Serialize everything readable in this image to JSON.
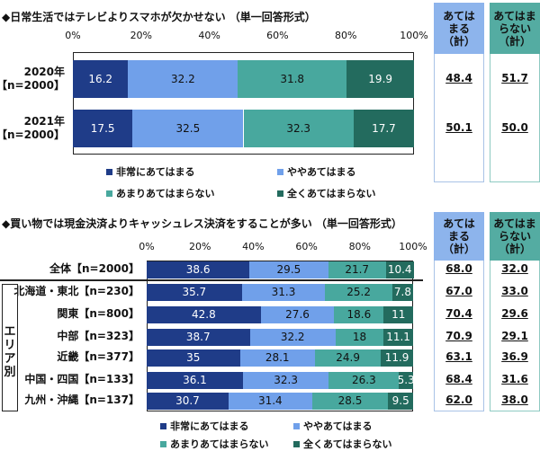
{
  "colors": {
    "very": "#1f3c88",
    "some": "#70a0ea",
    "notmuch": "#48a89e",
    "notatall": "#236b5e",
    "hdr1": "#8db4ec",
    "hdr2": "#54aca2"
  },
  "chart_data": [
    {
      "type": "bar",
      "orientation": "horizontal",
      "stacked": true,
      "title": "◆日常生活ではテレビよりスマホが欠かせない （単一回答形式）",
      "ticks": [
        "0%",
        "20%",
        "40%",
        "60%",
        "80%",
        "100%"
      ],
      "xlim": [
        0,
        100
      ],
      "categories": [
        "2020年\n【n=2000】",
        "2021年\n【n=2000】"
      ],
      "series": [
        {
          "name": "非常にあてはまる",
          "values": [
            16.2,
            17.5
          ]
        },
        {
          "name": "ややあてはまる",
          "values": [
            32.2,
            32.5
          ]
        },
        {
          "name": "あまりあてはまらない",
          "values": [
            31.8,
            32.3
          ]
        },
        {
          "name": "全くあてはまらない",
          "values": [
            19.9,
            17.7
          ]
        }
      ],
      "summary_headers": [
        "あては\nまる\n（計）",
        "あてはま\nらない\n（計）"
      ],
      "summary": [
        [
          "48.4",
          "51.7"
        ],
        [
          "50.1",
          "50.0"
        ]
      ]
    },
    {
      "type": "bar",
      "orientation": "horizontal",
      "stacked": true,
      "title": "◆買い物では現金決済よりキャッシュレス決済をすることが多い （単一回答形式）",
      "ticks": [
        "0%",
        "20%",
        "40%",
        "60%",
        "80%",
        "100%"
      ],
      "xlim": [
        0,
        100
      ],
      "group_label": "エリア別",
      "categories": [
        "全体【n=2000】",
        "北海道・東北【n=230】",
        "関東【n=800】",
        "中部【n=323】",
        "近畿【n=377】",
        "中国・四国【n=133】",
        "九州・沖縄【n=137】"
      ],
      "series": [
        {
          "name": "非常にあてはまる",
          "values": [
            38.6,
            35.7,
            42.8,
            38.7,
            35.0,
            36.1,
            30.7
          ]
        },
        {
          "name": "ややあてはまる",
          "values": [
            29.5,
            31.3,
            27.6,
            32.2,
            28.1,
            32.3,
            31.4
          ]
        },
        {
          "name": "あまりあてはまらない",
          "values": [
            21.7,
            25.2,
            18.6,
            18.0,
            24.9,
            26.3,
            28.5
          ]
        },
        {
          "name": "全くあてはまらない",
          "values": [
            10.4,
            7.8,
            11.0,
            11.1,
            11.9,
            5.3,
            9.5
          ]
        }
      ],
      "summary_headers": [
        "あては\nまる\n（計）",
        "あてはま\nらない\n（計）"
      ],
      "summary": [
        [
          "68.0",
          "32.0"
        ],
        [
          "67.0",
          "33.0"
        ],
        [
          "70.4",
          "29.6"
        ],
        [
          "70.9",
          "29.1"
        ],
        [
          "63.1",
          "36.9"
        ],
        [
          "68.4",
          "31.6"
        ],
        [
          "62.0",
          "38.0"
        ]
      ]
    }
  ]
}
